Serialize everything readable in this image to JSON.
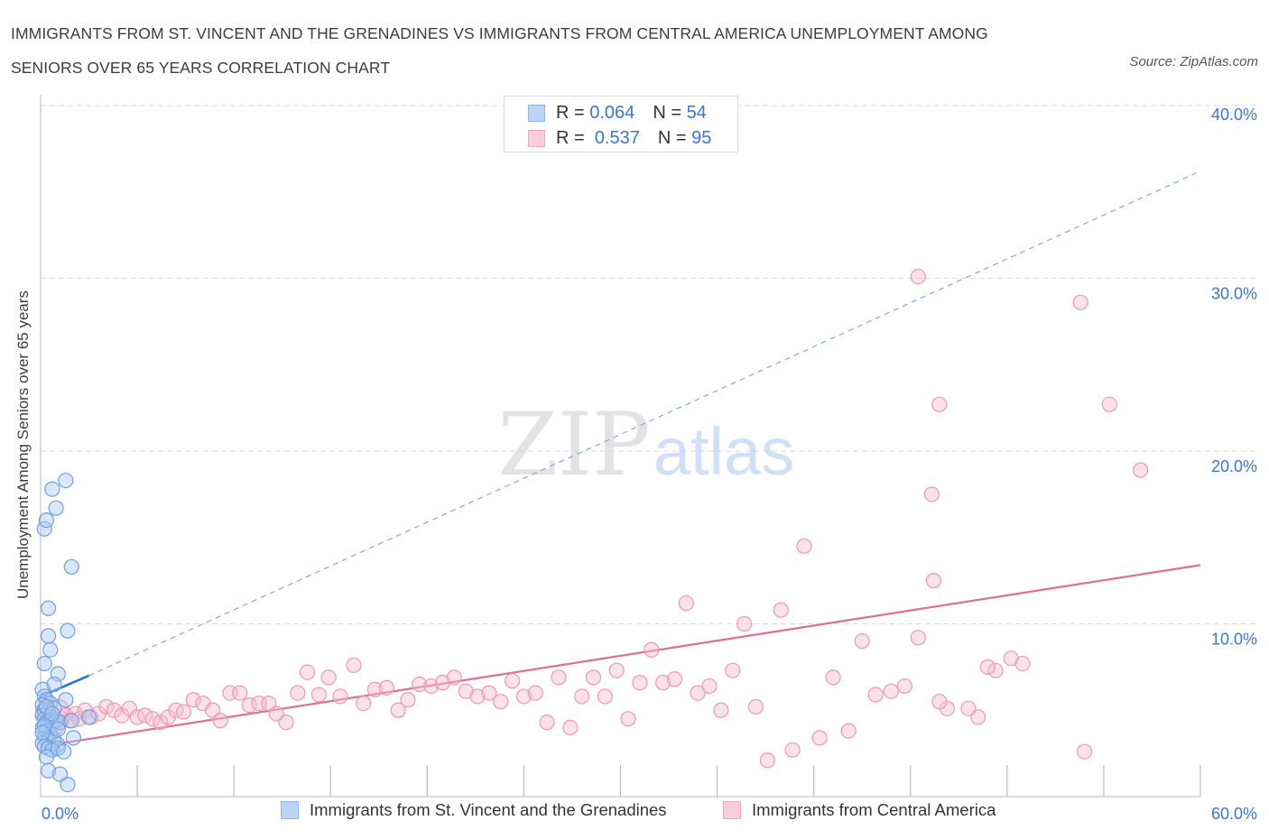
{
  "title_line1": "IMMIGRANTS FROM ST. VINCENT AND THE GRENADINES VS IMMIGRANTS FROM CENTRAL AMERICA UNEMPLOYMENT AMONG",
  "title_line2": "SENIORS OVER 65 YEARS CORRELATION CHART",
  "source": "Source: ZipAtlas.com",
  "watermark": {
    "zip": "ZIP",
    "atlas": "atlas"
  },
  "legend": {
    "r_label": "R =",
    "n_label": "N =",
    "blue": {
      "r": "0.064",
      "n": "54"
    },
    "pink": {
      "r": "0.537",
      "n": "95"
    }
  },
  "colors": {
    "blue": "#8ab6f0",
    "blue_line": "#2a6fd6",
    "pink": "#f3a6bd",
    "pink_line": "#e36c98",
    "axis_text": "#3a76d2"
  },
  "chart_data": {
    "type": "scatter",
    "xlabel": "",
    "ylabel": "Unemployment Among Seniors over 65 years",
    "xlim": [
      0,
      60
    ],
    "ylim": [
      0,
      40
    ],
    "x_tick_labels": [
      "0.0%",
      "60.0%"
    ],
    "y_ticks": [
      10,
      20,
      30,
      40
    ],
    "y_tick_labels": [
      "10.0%",
      "20.0%",
      "30.0%",
      "40.0%"
    ],
    "grid": true,
    "series": [
      {
        "name": "Immigrants from St. Vincent and the Grenadines",
        "color": "#8ab6f0",
        "trend": {
          "x": [
            0,
            2.5
          ],
          "y": [
            5.8,
            7.0
          ],
          "style": "solid"
        },
        "trend_extension": {
          "x": [
            2.5,
            60
          ],
          "y": [
            7.0,
            36.2
          ],
          "style": "dashed"
        },
        "points": [
          [
            0.2,
            15.5
          ],
          [
            0.3,
            16.0
          ],
          [
            0.6,
            17.8
          ],
          [
            0.8,
            16.7
          ],
          [
            1.3,
            18.3
          ],
          [
            1.6,
            13.3
          ],
          [
            0.4,
            10.9
          ],
          [
            1.4,
            9.6
          ],
          [
            0.4,
            9.3
          ],
          [
            0.5,
            8.5
          ],
          [
            0.2,
            7.7
          ],
          [
            0.9,
            7.1
          ],
          [
            0.7,
            6.5
          ],
          [
            0.1,
            6.2
          ],
          [
            0.2,
            5.8
          ],
          [
            0.3,
            5.6
          ],
          [
            0.5,
            5.4
          ],
          [
            1.3,
            5.6
          ],
          [
            0.1,
            5.3
          ],
          [
            0.2,
            5.0
          ],
          [
            0.4,
            4.9
          ],
          [
            0.7,
            5.1
          ],
          [
            0.1,
            4.7
          ],
          [
            0.2,
            4.5
          ],
          [
            0.3,
            4.3
          ],
          [
            0.5,
            4.6
          ],
          [
            0.6,
            4.2
          ],
          [
            0.8,
            4.4
          ],
          [
            1.0,
            4.3
          ],
          [
            1.6,
            4.4
          ],
          [
            2.5,
            4.6
          ],
          [
            0.1,
            4.0
          ],
          [
            0.3,
            3.8
          ],
          [
            0.5,
            3.6
          ],
          [
            0.2,
            3.4
          ],
          [
            0.4,
            3.2
          ],
          [
            0.7,
            3.3
          ],
          [
            0.9,
            3.0
          ],
          [
            1.7,
            3.4
          ],
          [
            0.1,
            3.1
          ],
          [
            0.2,
            2.9
          ],
          [
            0.4,
            2.8
          ],
          [
            0.6,
            2.7
          ],
          [
            0.9,
            2.8
          ],
          [
            1.2,
            2.6
          ],
          [
            0.3,
            2.3
          ],
          [
            0.4,
            1.5
          ],
          [
            1.0,
            1.3
          ],
          [
            1.4,
            0.7
          ],
          [
            0.2,
            4.1
          ],
          [
            0.3,
            5.2
          ],
          [
            0.6,
            4.8
          ],
          [
            0.9,
            3.9
          ],
          [
            0.1,
            3.7
          ]
        ]
      },
      {
        "name": "Immigrants from Central America",
        "color": "#f3a6bd",
        "trend": {
          "x": [
            0,
            60
          ],
          "y": [
            2.9,
            13.4
          ],
          "style": "solid"
        },
        "points": [
          [
            0.3,
            4.9
          ],
          [
            0.5,
            4.6
          ],
          [
            0.7,
            4.2
          ],
          [
            0.9,
            5.0
          ],
          [
            1.1,
            4.5
          ],
          [
            1.3,
            4.7
          ],
          [
            1.5,
            4.4
          ],
          [
            1.8,
            4.8
          ],
          [
            2.0,
            4.5
          ],
          [
            2.3,
            5.0
          ],
          [
            2.6,
            4.6
          ],
          [
            3.0,
            4.8
          ],
          [
            3.4,
            5.2
          ],
          [
            3.8,
            5.0
          ],
          [
            4.2,
            4.7
          ],
          [
            4.6,
            5.1
          ],
          [
            5.0,
            4.6
          ],
          [
            5.4,
            4.7
          ],
          [
            5.8,
            4.5
          ],
          [
            6.2,
            4.3
          ],
          [
            6.6,
            4.6
          ],
          [
            7.0,
            5.0
          ],
          [
            7.4,
            4.9
          ],
          [
            7.9,
            5.6
          ],
          [
            8.4,
            5.4
          ],
          [
            8.9,
            5.0
          ],
          [
            9.3,
            4.4
          ],
          [
            9.8,
            6.0
          ],
          [
            10.3,
            6.0
          ],
          [
            10.8,
            5.3
          ],
          [
            11.3,
            5.4
          ],
          [
            11.8,
            5.4
          ],
          [
            12.2,
            4.8
          ],
          [
            12.7,
            4.3
          ],
          [
            13.3,
            6.0
          ],
          [
            13.8,
            7.2
          ],
          [
            14.4,
            5.9
          ],
          [
            14.9,
            6.9
          ],
          [
            15.5,
            5.8
          ],
          [
            16.2,
            7.6
          ],
          [
            16.7,
            5.4
          ],
          [
            17.3,
            6.2
          ],
          [
            17.9,
            6.3
          ],
          [
            18.5,
            5.0
          ],
          [
            19.0,
            5.6
          ],
          [
            19.6,
            6.5
          ],
          [
            20.2,
            6.4
          ],
          [
            20.8,
            6.6
          ],
          [
            21.4,
            6.9
          ],
          [
            22.0,
            6.1
          ],
          [
            22.6,
            5.8
          ],
          [
            23.2,
            6.0
          ],
          [
            23.8,
            5.5
          ],
          [
            24.4,
            6.7
          ],
          [
            25.0,
            5.8
          ],
          [
            25.6,
            6.0
          ],
          [
            26.2,
            4.3
          ],
          [
            26.8,
            6.9
          ],
          [
            27.4,
            4.0
          ],
          [
            28.0,
            5.8
          ],
          [
            28.6,
            6.9
          ],
          [
            29.2,
            5.8
          ],
          [
            29.8,
            7.3
          ],
          [
            30.4,
            4.5
          ],
          [
            31.0,
            6.6
          ],
          [
            31.6,
            8.5
          ],
          [
            32.2,
            6.6
          ],
          [
            32.8,
            6.8
          ],
          [
            33.4,
            11.2
          ],
          [
            34.0,
            6.0
          ],
          [
            34.6,
            6.4
          ],
          [
            35.2,
            5.0
          ],
          [
            35.8,
            7.3
          ],
          [
            36.4,
            10.0
          ],
          [
            37.0,
            5.2
          ],
          [
            37.6,
            2.1
          ],
          [
            38.3,
            10.8
          ],
          [
            38.9,
            2.7
          ],
          [
            39.5,
            14.5
          ],
          [
            40.3,
            3.4
          ],
          [
            41.0,
            6.9
          ],
          [
            41.8,
            3.8
          ],
          [
            42.5,
            9.0
          ],
          [
            43.2,
            5.9
          ],
          [
            44.0,
            6.1
          ],
          [
            44.7,
            6.4
          ],
          [
            45.4,
            9.2
          ],
          [
            46.2,
            12.5
          ],
          [
            46.9,
            5.1
          ],
          [
            48.5,
            4.6
          ],
          [
            49.4,
            7.3
          ],
          [
            50.2,
            8.0
          ],
          [
            50.8,
            7.7
          ],
          [
            54.0,
            2.6
          ],
          [
            55.3,
            22.7
          ],
          [
            46.5,
            5.5
          ],
          [
            49.0,
            7.5
          ]
        ]
      }
    ],
    "extra_points_pink": [
      [
        45.4,
        30.1
      ],
      [
        53.8,
        28.6
      ],
      [
        46.5,
        22.7
      ],
      [
        46.1,
        17.5
      ],
      [
        56.9,
        18.9
      ],
      [
        48.0,
        5.1
      ]
    ]
  }
}
